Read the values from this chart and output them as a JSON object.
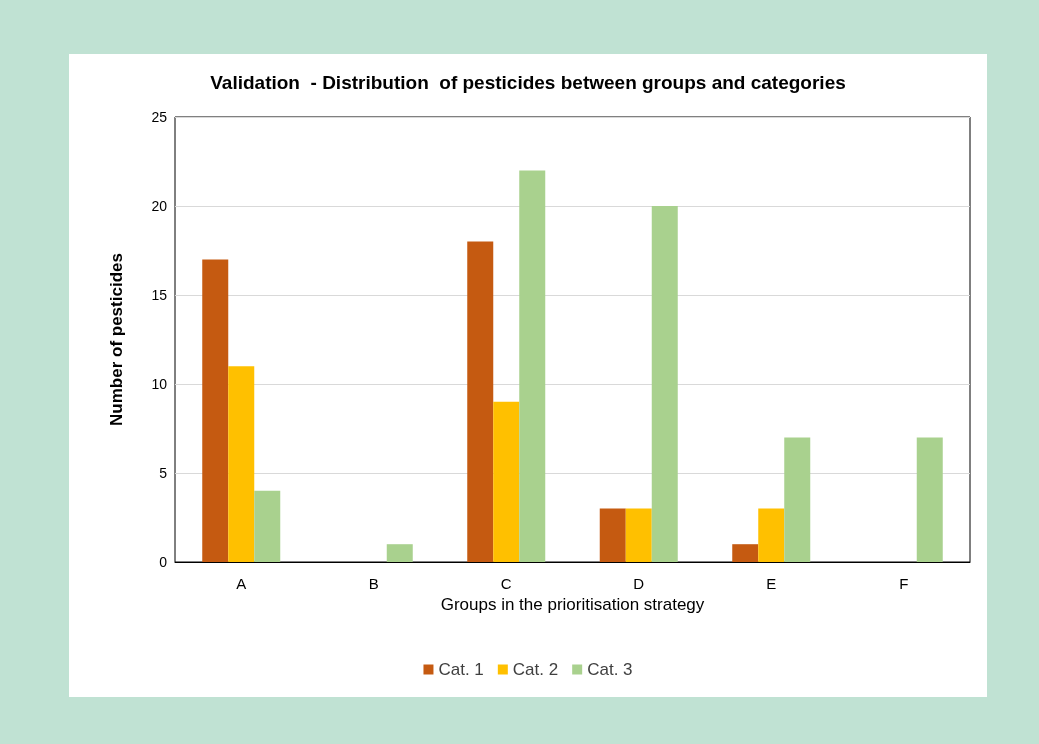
{
  "chart_data": {
    "type": "bar",
    "title": "Validation  - Distribution  of pesticides between groups and categories",
    "xlabel": "Groups in the prioritisation strategy",
    "ylabel": "Number of pesticides",
    "categories": [
      "A",
      "B",
      "C",
      "D",
      "E",
      "F"
    ],
    "series": [
      {
        "name": "Cat. 1",
        "color": "#c55a11",
        "values": [
          17,
          0,
          18,
          3,
          1,
          0
        ]
      },
      {
        "name": "Cat. 2",
        "color": "#ffc000",
        "values": [
          11,
          0,
          9,
          3,
          3,
          0
        ]
      },
      {
        "name": "Cat. 3",
        "color": "#a9d18e",
        "values": [
          4,
          1,
          22,
          20,
          7,
          7
        ]
      }
    ],
    "ylim": [
      0,
      25
    ],
    "yticks": [
      0,
      5,
      10,
      15,
      20,
      25
    ],
    "grid": "y",
    "legend": "bottom"
  }
}
